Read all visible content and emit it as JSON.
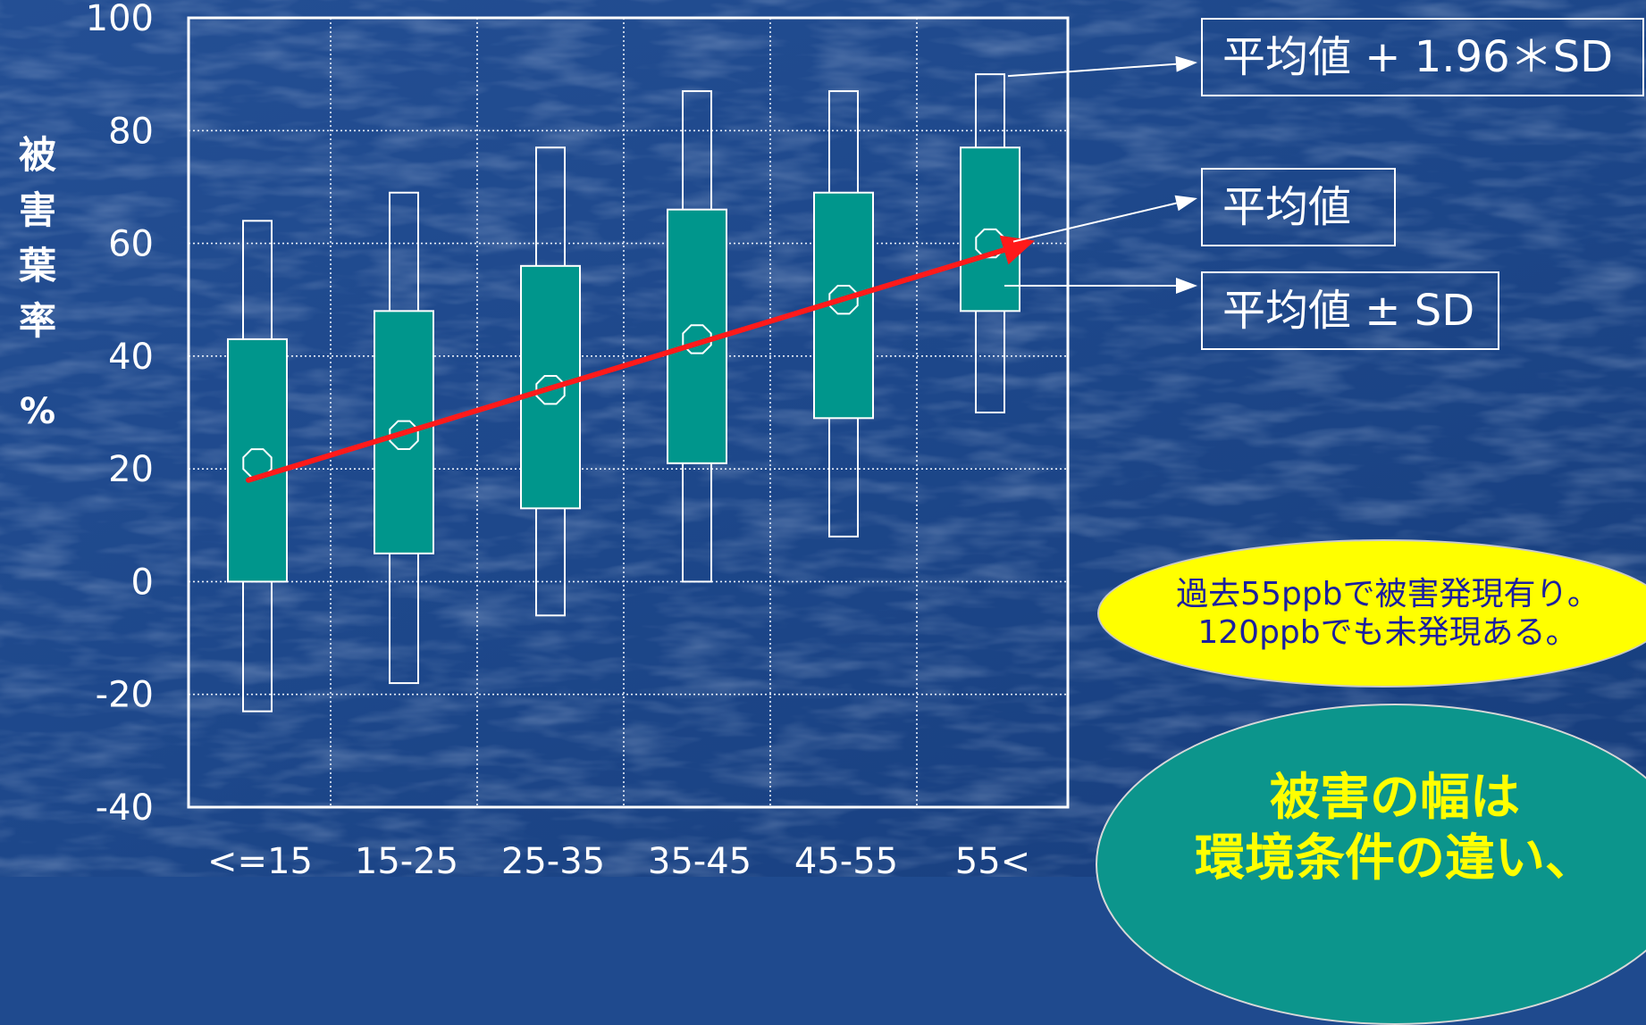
{
  "chart_data": {
    "type": "box",
    "categories": [
      "<=15",
      "15-25",
      "25-35",
      "35-45",
      "45-55",
      "55<"
    ],
    "series": [
      {
        "mean": [
          21,
          26,
          34,
          43,
          50,
          60
        ],
        "mean_plus_sd": [
          43,
          48,
          56,
          66,
          69,
          77
        ],
        "mean_minus_sd": [
          0,
          5,
          13,
          21,
          29,
          48
        ],
        "mean_plus_1_96sd": [
          64,
          69,
          77,
          87,
          87,
          90
        ],
        "mean_minus_1_96sd": [
          -23,
          -18,
          -6,
          0,
          8,
          30
        ]
      }
    ],
    "trend_line": {
      "from": {
        "category": "<=15",
        "y": 18
      },
      "to": {
        "category": "55<",
        "y": 60
      }
    },
    "ylim": [
      -40,
      100
    ],
    "yticks": [
      "100",
      "80",
      "60",
      "40",
      "20",
      "0",
      "-20",
      "-40"
    ],
    "ylabel": "被害葉率",
    "yunit": "%",
    "xlabel": "",
    "grid": true,
    "colors": {
      "box_fill": "#00968c",
      "trend": "#ff1a1a",
      "frame": "#ffffff",
      "background": "#1f4a8e"
    }
  },
  "legend": {
    "ci_label": "平均値 + 1.96＊SD",
    "mean_label": "平均値",
    "sd_label": "平均値 ± SD"
  },
  "note": {
    "line1": "過去55ppbで被害発現有り。",
    "line2": "120ppbでも未発現ある。"
  },
  "conclusion": {
    "line1": "被害の幅は",
    "line2": "環境条件の違い、"
  }
}
